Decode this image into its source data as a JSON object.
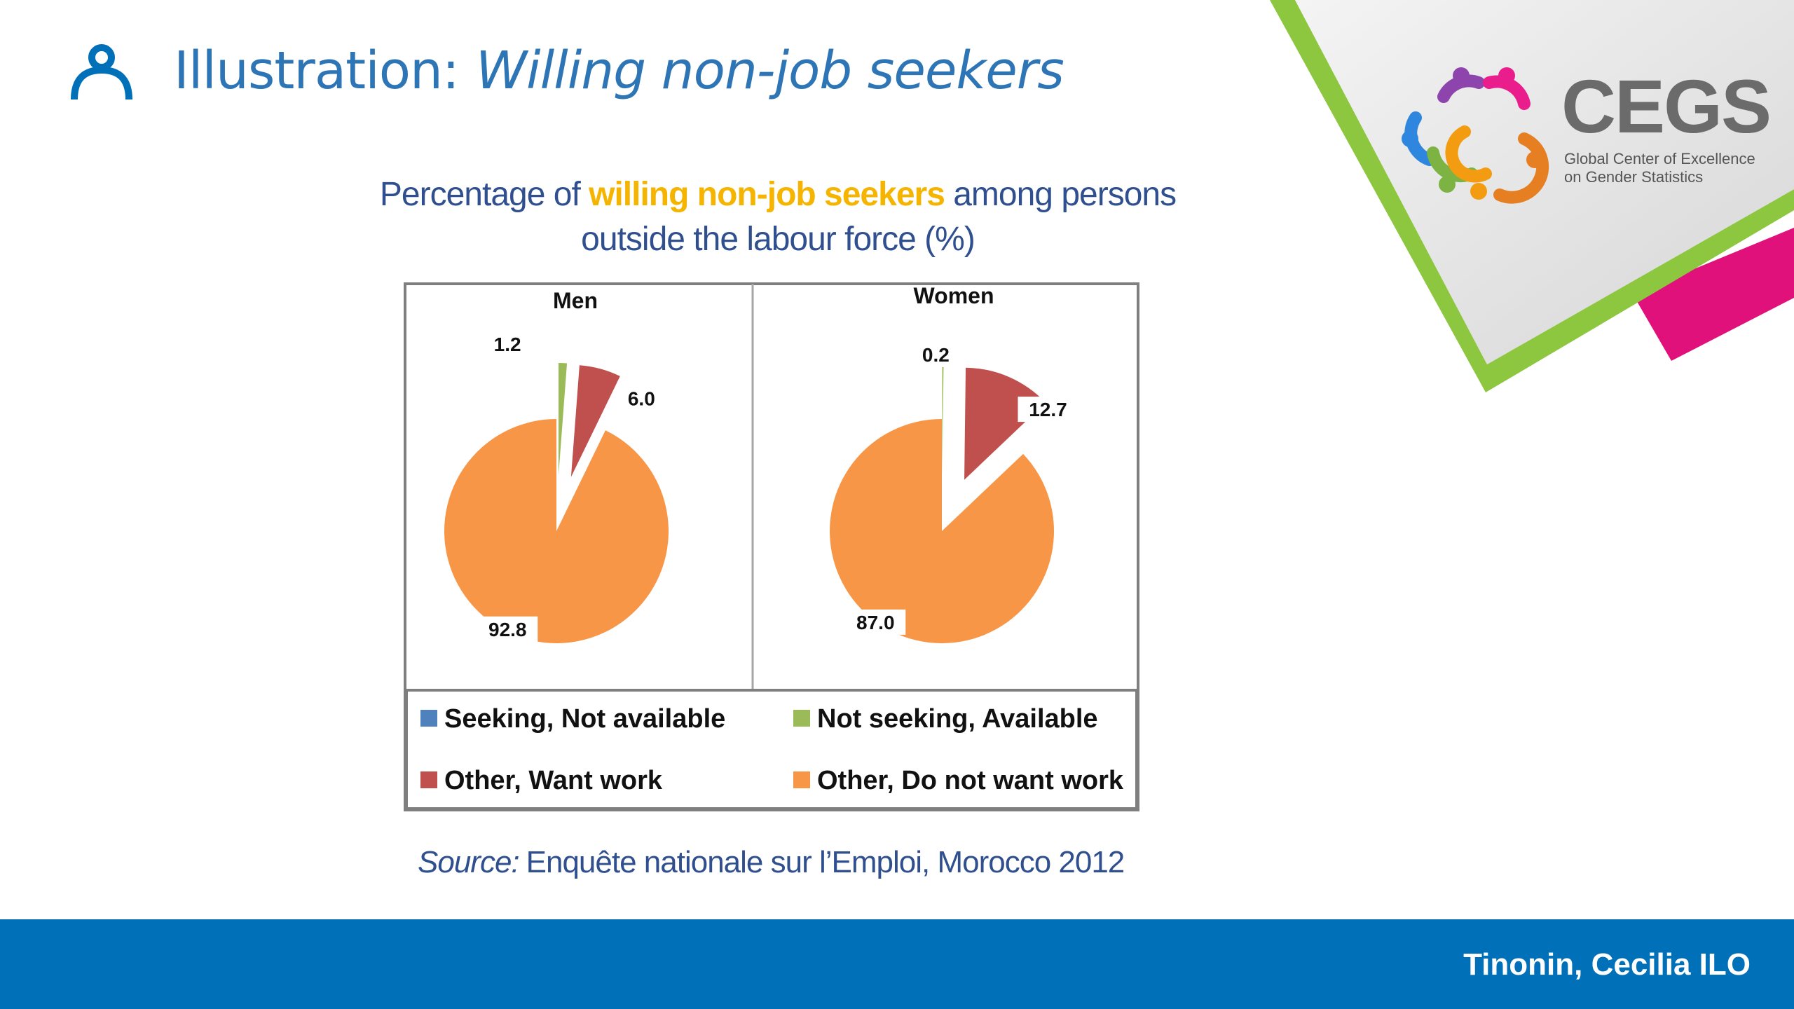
{
  "slide": {
    "title_prefix": "Illustration:",
    "title_main": "Willing non-job seekers",
    "icon": "person-icon"
  },
  "logo": {
    "name": "CEGS",
    "subtitle_line1": "Global Center of Excellence",
    "subtitle_line2": "on Gender Statistics",
    "colors": [
      "#8e44ad",
      "#e91e8c",
      "#2e86de",
      "#f39c12",
      "#7cb342",
      "#e67e22"
    ]
  },
  "chart_title": {
    "part1": "Percentage of ",
    "highlight": "willing non-job seekers",
    "part2": " among persons",
    "line2": "outside the labour force (%)"
  },
  "chart_data": [
    {
      "type": "pie",
      "title": "Men",
      "slices": [
        {
          "name": "Seeking, Not available",
          "value": 0,
          "label": ""
        },
        {
          "name": "Not seeking, Available",
          "value": 1.2,
          "label": "1.2"
        },
        {
          "name": "Other, Want work",
          "value": 6.0,
          "label": "6.0"
        },
        {
          "name": "Other, Do not want work",
          "value": 92.8,
          "label": "92.8"
        }
      ]
    },
    {
      "type": "pie",
      "title": "Women",
      "slices": [
        {
          "name": "Seeking, Not available",
          "value": 0,
          "label": ""
        },
        {
          "name": "Not seeking, Available",
          "value": 0.2,
          "label": "0.2"
        },
        {
          "name": "Other, Want work",
          "value": 12.7,
          "label": "12.7"
        },
        {
          "name": "Other, Do not want work",
          "value": 87.0,
          "label": "87.0"
        }
      ]
    }
  ],
  "legend": [
    {
      "label": "Seeking, Not available",
      "color": "#4f81bd"
    },
    {
      "label": "Not seeking, Available",
      "color": "#9bbb59"
    },
    {
      "label": "Other, Want work",
      "color": "#c0504d"
    },
    {
      "label": "Other, Do not want work",
      "color": "#f79646"
    }
  ],
  "source": {
    "label": "Source:",
    "text": "Enquête nationale sur l’Emploi, Morocco 2012"
  },
  "footer": {
    "text": "Tinonin, Cecilia ILO"
  },
  "colors": {
    "accent_blue": "#0070b9",
    "title_blue": "#2e75b6",
    "highlight_yellow": "#f5b400",
    "corner_green": "#8dc63f",
    "corner_magenta": "#e0117a"
  }
}
